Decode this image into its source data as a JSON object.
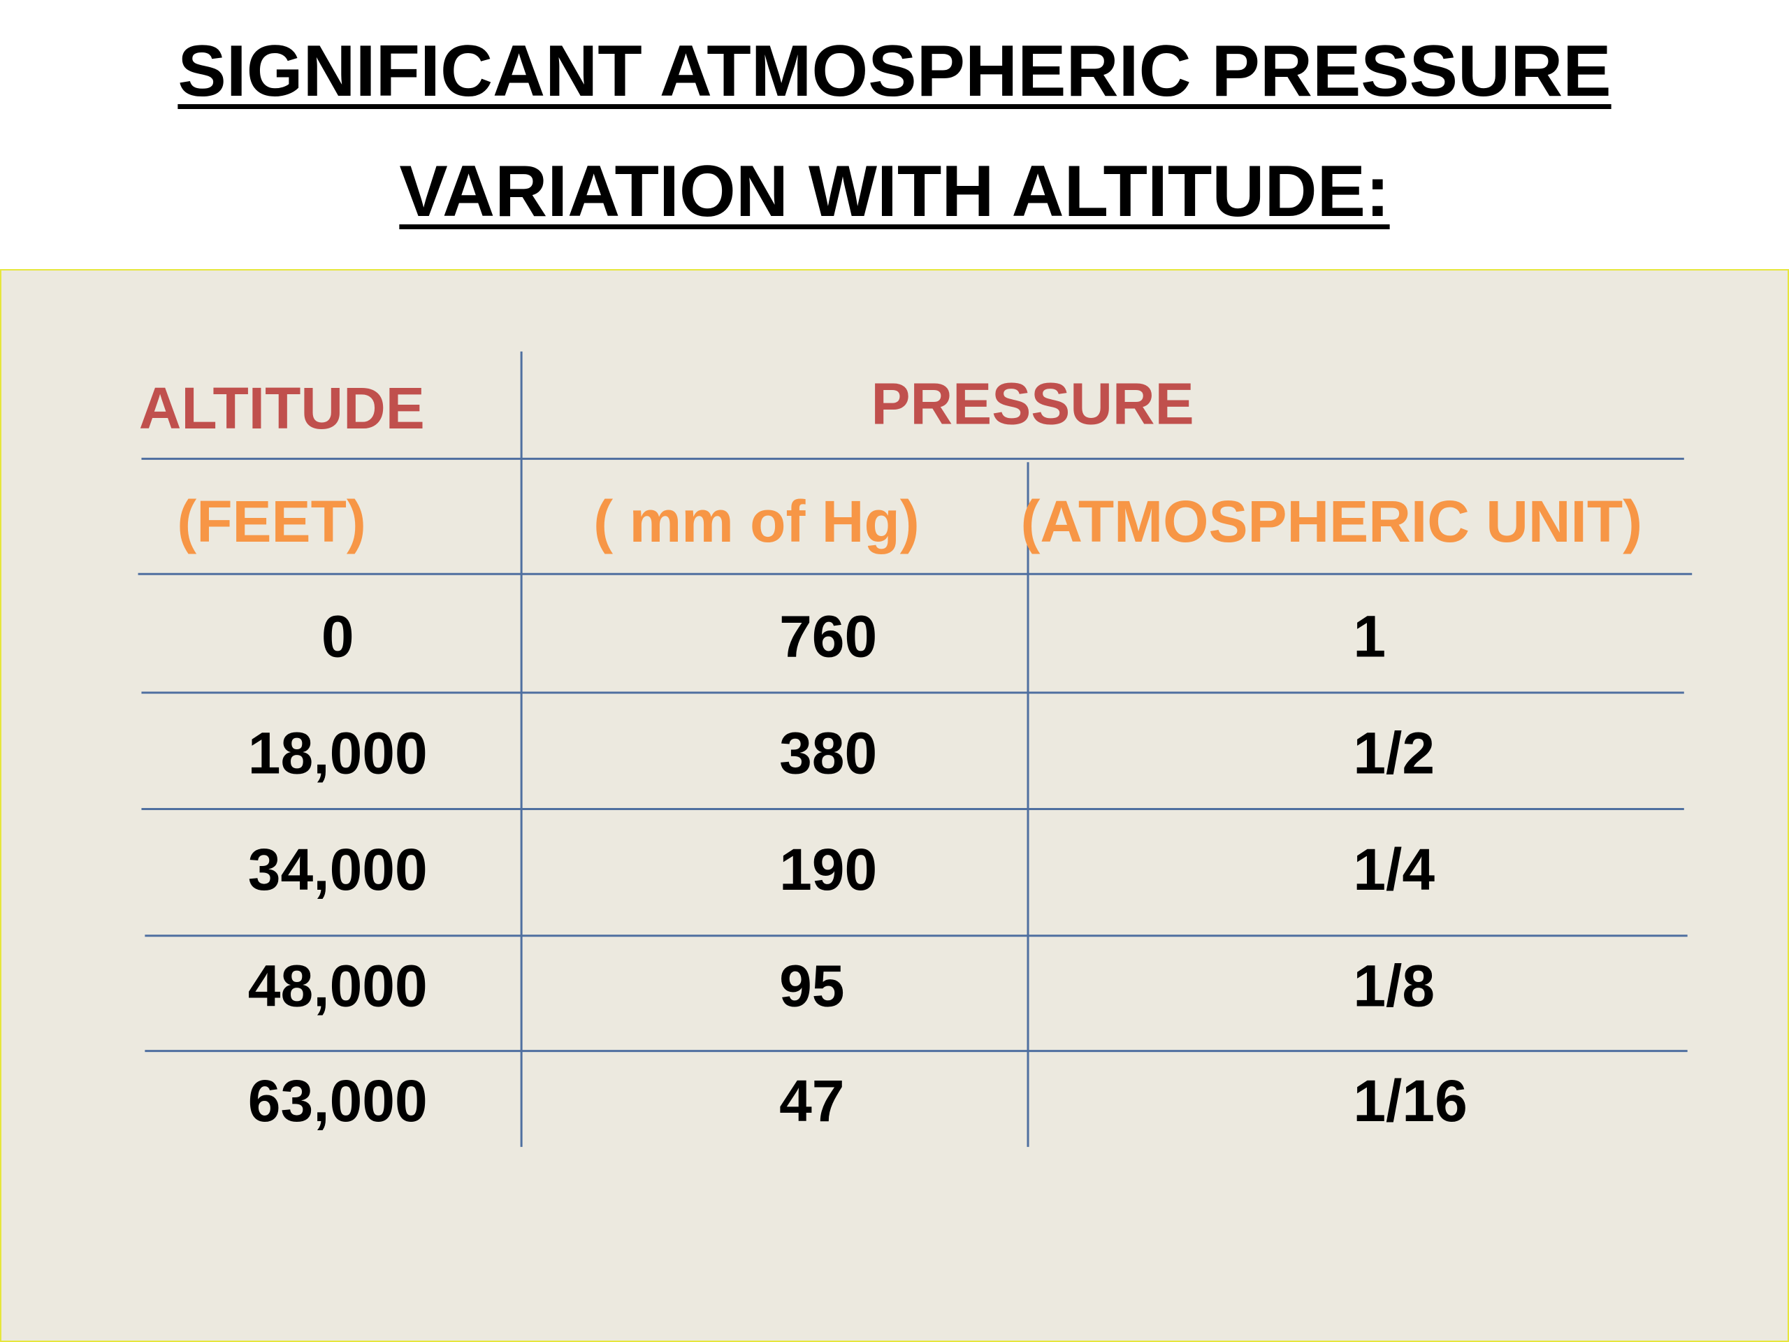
{
  "title": "SIGNIFICANT ATMOSPHERIC PRESSURE VARIATION WITH ALTITUDE:",
  "table": {
    "header": [
      "ALTITUDE",
      "PRESSURE"
    ],
    "subheader": [
      "(FEET)",
      "( mm of Hg)",
      "(ATMOSPHERIC UNIT)"
    ],
    "rows": [
      [
        "0",
        "760",
        "1"
      ],
      [
        "18,000",
        "380",
        "1/2"
      ],
      [
        "34,000",
        "190",
        "1/4"
      ],
      [
        "48,000",
        "95",
        "1/8"
      ],
      [
        "63,000",
        "47",
        "1/16"
      ]
    ]
  }
}
